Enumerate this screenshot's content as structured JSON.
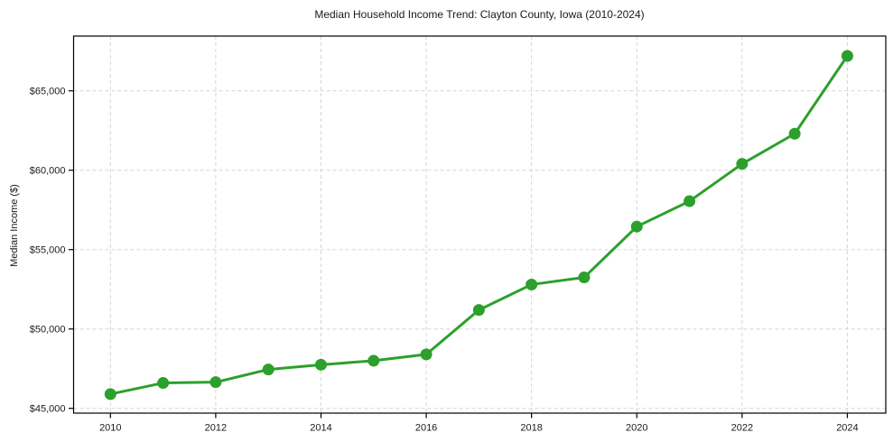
{
  "figure": {
    "title": "Median Household Income Trend: Clayton County, Iowa (2010-2024)"
  },
  "chart_data": {
    "type": "line",
    "title": "Median Household Income Trend: Clayton County, Iowa (2010-2024)",
    "xlabel": "",
    "ylabel": "Median Income ($)",
    "x": [
      2010,
      2011,
      2012,
      2013,
      2014,
      2015,
      2016,
      2017,
      2018,
      2019,
      2020,
      2021,
      2022,
      2023,
      2024
    ],
    "series": [
      {
        "name": "Median Household Income",
        "color": "#2ca02c",
        "values": [
          45900,
          46600,
          46650,
          47450,
          47750,
          48000,
          48400,
          51200,
          52800,
          53250,
          56450,
          58050,
          60400,
          62300,
          67200
        ]
      }
    ],
    "xticks": [
      2010,
      2012,
      2014,
      2016,
      2018,
      2020,
      2022,
      2024
    ],
    "yticks": [
      45000,
      50000,
      55000,
      60000,
      65000
    ],
    "ytick_labels": [
      "$45,000",
      "$50,000",
      "$55,000",
      "$60,000",
      "$65,000"
    ],
    "xlim": [
      2009.3,
      2024.73
    ],
    "ylim": [
      44700,
      68450
    ],
    "grid": true,
    "grid_style": "dashed",
    "legend": false,
    "marker": "circle",
    "colors": {
      "line": "#2ca02c",
      "grid": "#d5d5d5",
      "axis": "#000000",
      "text": "#1a1a1a",
      "background": "#ffffff"
    }
  }
}
